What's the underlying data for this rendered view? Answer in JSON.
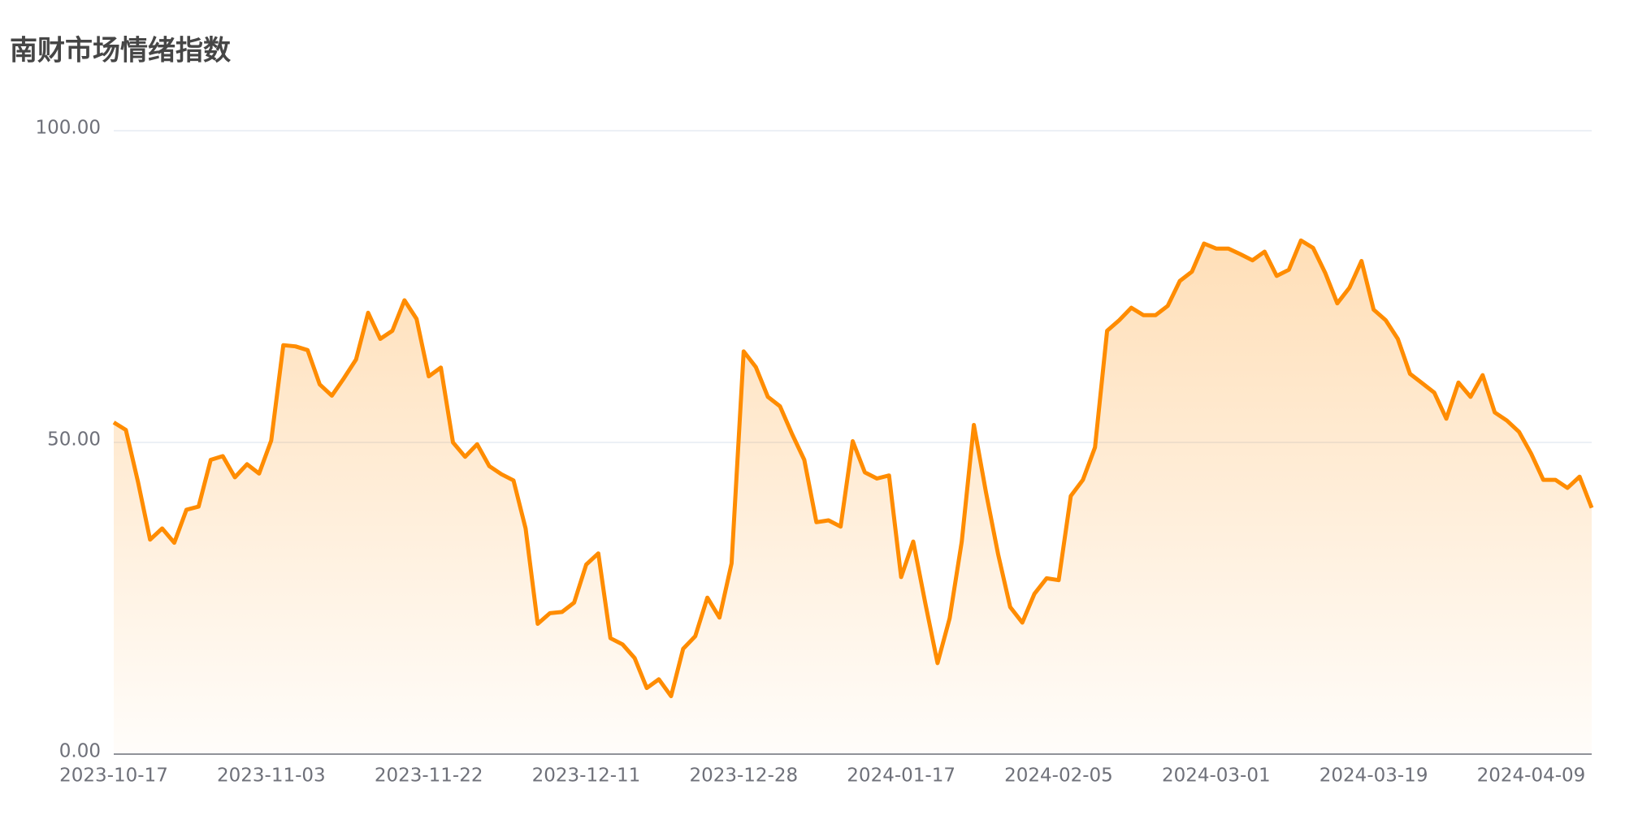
{
  "chart_data": {
    "type": "line",
    "title": "南财市场情绪指数",
    "categories": [
      "2023-10-17",
      null,
      null,
      null,
      null,
      null,
      null,
      null,
      null,
      null,
      null,
      null,
      null,
      "2023-11-03",
      null,
      null,
      null,
      null,
      null,
      null,
      null,
      null,
      null,
      null,
      null,
      null,
      "2023-11-22",
      null,
      null,
      null,
      null,
      null,
      null,
      null,
      null,
      null,
      null,
      null,
      null,
      "2023-12-11",
      null,
      null,
      null,
      null,
      null,
      null,
      null,
      null,
      null,
      null,
      null,
      null,
      "2023-12-28",
      null,
      null,
      null,
      null,
      null,
      null,
      null,
      null,
      null,
      null,
      null,
      null,
      "2024-01-17",
      null,
      null,
      null,
      null,
      null,
      null,
      null,
      null,
      null,
      null,
      null,
      null,
      "2024-02-05",
      null,
      null,
      null,
      null,
      null,
      null,
      null,
      null,
      null,
      null,
      null,
      null,
      "2024-03-01",
      null,
      null,
      null,
      null,
      null,
      null,
      null,
      null,
      null,
      null,
      null,
      null,
      "2024-03-19",
      null,
      null,
      null,
      null,
      null,
      null,
      null,
      null,
      null,
      null,
      null,
      null,
      "2024-04-09",
      null,
      null,
      null,
      null,
      null
    ],
    "values": [
      53.2,
      52.0,
      43.7,
      34.4,
      36.2,
      33.9,
      39.2,
      39.7,
      47.2,
      47.8,
      44.4,
      46.5,
      45.0,
      50.3,
      65.6,
      65.4,
      64.8,
      59.3,
      57.5,
      60.3,
      63.3,
      70.8,
      66.6,
      67.9,
      72.8,
      69.8,
      60.6,
      62.0,
      50.0,
      47.7,
      49.7,
      46.2,
      44.9,
      43.9,
      36.2,
      20.9,
      22.6,
      22.8,
      24.3,
      30.4,
      32.2,
      18.6,
      17.6,
      15.4,
      10.6,
      12.0,
      9.3,
      16.9,
      18.9,
      25.1,
      21.9,
      30.6,
      64.6,
      62.1,
      57.3,
      55.8,
      51.3,
      47.2,
      37.2,
      37.5,
      36.5,
      50.2,
      45.2,
      44.2,
      44.7,
      28.4,
      34.1,
      24.1,
      14.6,
      21.8,
      34.1,
      52.8,
      42.0,
      32.1,
      23.6,
      21.1,
      25.7,
      28.2,
      27.9,
      41.4,
      44.0,
      49.2,
      67.9,
      69.6,
      71.6,
      70.4,
      70.4,
      71.9,
      75.9,
      77.4,
      81.9,
      81.1,
      81.1,
      80.2,
      79.2,
      80.6,
      76.7,
      77.7,
      82.4,
      81.2,
      77.2,
      72.3,
      74.8,
      79.1,
      71.3,
      69.6,
      66.6,
      61.0,
      59.5,
      58.0,
      53.8,
      59.6,
      57.3,
      60.8,
      54.8,
      53.5,
      51.7,
      48.2,
      44.0,
      44.0,
      42.7,
      44.5,
      39.5
    ],
    "color": "#ff8c00",
    "ylim": [
      0,
      100
    ],
    "yticks": [
      {
        "value": 0,
        "label": "0.00"
      },
      {
        "value": 50,
        "label": "50.00"
      },
      {
        "value": 100,
        "label": "100.00"
      }
    ],
    "grid": true
  }
}
